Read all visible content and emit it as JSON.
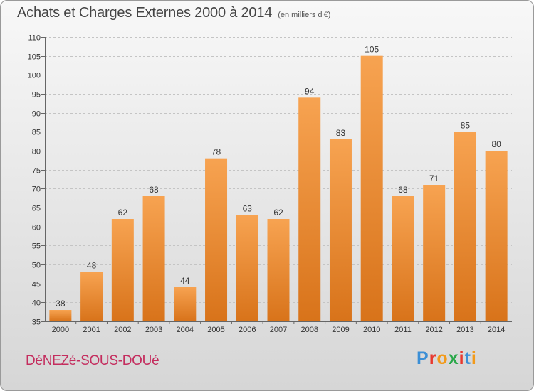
{
  "header": {
    "title": "Achats et Charges Externes 2000 à 2014",
    "subtitle": "(en milliers d'€)"
  },
  "footer": {
    "town": "DéNEZé-SOUS-DOUé",
    "logo_letters": [
      "P",
      "r",
      "o",
      "x",
      "i",
      "t",
      "i"
    ],
    "logo_colors": [
      "#3b8fd6",
      "#e8382e",
      "#f29a1a",
      "#2aa84a",
      "#e8382e",
      "#3b8fd6",
      "#f29a1a"
    ]
  },
  "chart_data": {
    "type": "bar",
    "categories": [
      "2000",
      "2001",
      "2002",
      "2003",
      "2004",
      "2005",
      "2006",
      "2007",
      "2008",
      "2009",
      "2010",
      "2011",
      "2012",
      "2013",
      "2014"
    ],
    "values": [
      38,
      48,
      62,
      68,
      44,
      78,
      63,
      62,
      94,
      83,
      105,
      68,
      71,
      85,
      80
    ],
    "data_labels": [
      "38",
      "48",
      "62",
      "68",
      "44",
      "78",
      "63",
      "62",
      "94",
      "83",
      "105",
      "68",
      "71",
      "85",
      "80"
    ],
    "ylim": [
      35,
      110
    ],
    "yticks": [
      35,
      40,
      45,
      50,
      55,
      60,
      65,
      70,
      75,
      80,
      85,
      90,
      95,
      100,
      105,
      110
    ],
    "grid": true,
    "bar_color_top": "#f7a351",
    "bar_color_bottom": "#d8731a"
  }
}
